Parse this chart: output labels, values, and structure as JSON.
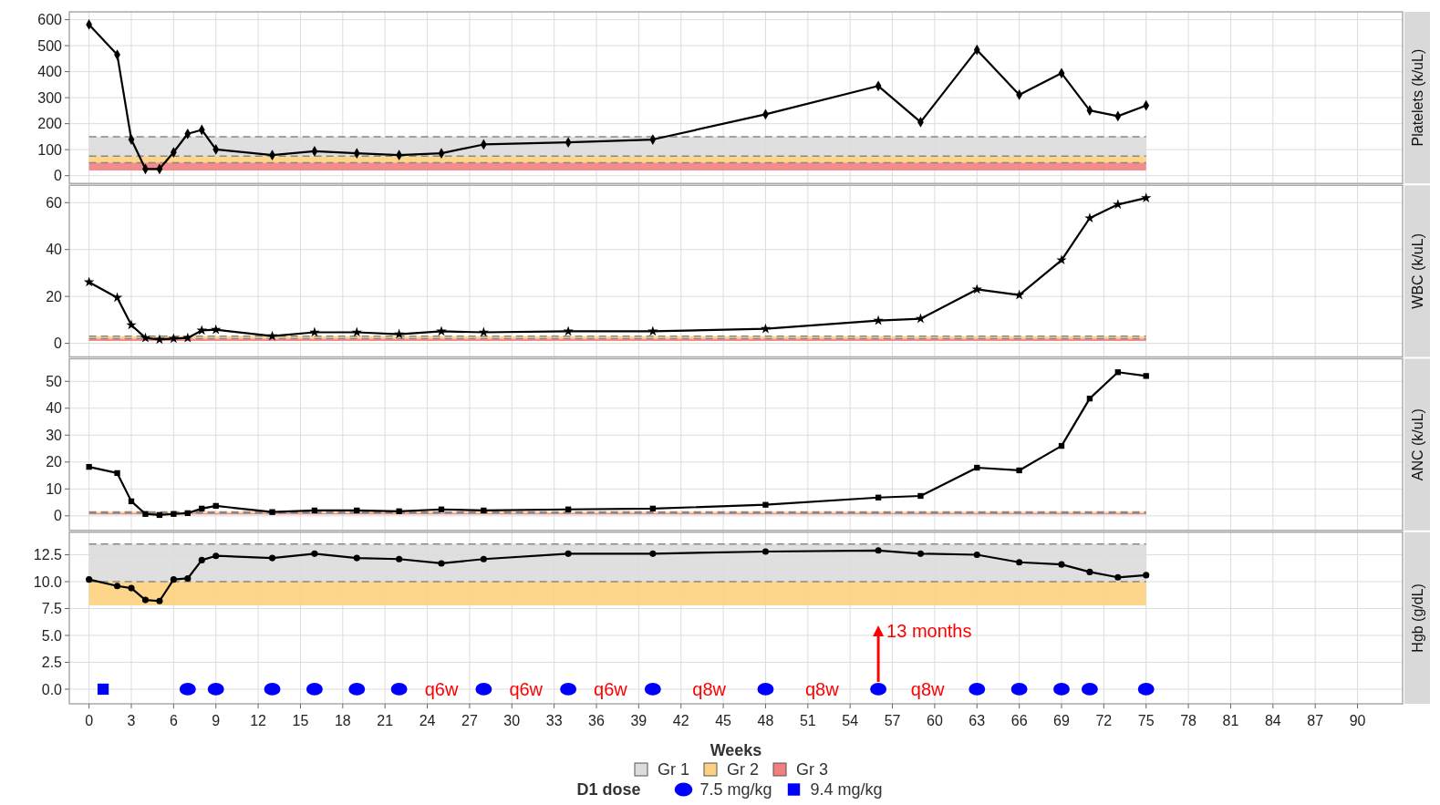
{
  "chart_data": [
    {
      "type": "line",
      "ylabel": "Platelets (k/uL)",
      "xlim": [
        -1.4,
        93.2
      ],
      "xticks": [
        0,
        3,
        6,
        9,
        12,
        15,
        18,
        21,
        24,
        27,
        30,
        33,
        36,
        39,
        42,
        45,
        48,
        51,
        54,
        57,
        60,
        63,
        66,
        69,
        72,
        75,
        78,
        81,
        84,
        87,
        90
      ],
      "ylim": [
        -30,
        630
      ],
      "yticks": [
        0,
        100,
        200,
        300,
        400,
        500,
        600
      ],
      "tick_labels": "y",
      "grid": true,
      "legend": "bottom",
      "x": [
        0,
        2,
        3,
        4,
        5,
        6,
        7,
        8,
        9,
        13,
        16,
        19,
        22,
        25,
        28,
        34,
        40,
        48,
        56,
        59,
        63,
        66,
        69,
        71,
        73,
        75
      ],
      "series": [
        {
          "color": "#000000",
          "marker": "diamond",
          "values": [
            581,
            465,
            139,
            26,
            26,
            90,
            161,
            176,
            101,
            79,
            94,
            86,
            79,
            86,
            120,
            128,
            139,
            236,
            345,
            206,
            484,
            311,
            394,
            251,
            229,
            270
          ]
        }
      ],
      "bands": [
        {
          "axis": "y",
          "from": 75,
          "to": 150,
          "label": "Gr 1",
          "color": "#dcdcdc"
        },
        {
          "axis": "y",
          "from": 50,
          "to": 75,
          "label": "Gr 2",
          "color": "#fdd17f"
        },
        {
          "axis": "y",
          "from": 20,
          "to": 50,
          "label": "Gr 3",
          "color": "#f47f7f"
        }
      ],
      "ref_lines": [
        {
          "axis": "y",
          "value": 150,
          "color": "#888888",
          "line_style": "dashed"
        },
        {
          "axis": "y",
          "value": 75,
          "color": "#888888",
          "line_style": "dashed"
        },
        {
          "axis": "y",
          "value": 50,
          "color": "#888888",
          "line_style": "dashed"
        }
      ]
    },
    {
      "type": "line",
      "ylabel": "WBC (k/uL)",
      "xlim": [
        -1.4,
        93.2
      ],
      "xticks": [
        0,
        3,
        6,
        9,
        12,
        15,
        18,
        21,
        24,
        27,
        30,
        33,
        36,
        39,
        42,
        45,
        48,
        51,
        54,
        57,
        60,
        63,
        66,
        69,
        72,
        75,
        78,
        81,
        84,
        87,
        90
      ],
      "ylim": [
        -5.8,
        67.4
      ],
      "yticks": [
        0,
        20,
        40,
        60
      ],
      "tick_labels": "y",
      "grid": true,
      "x": [
        0,
        2,
        3,
        4,
        5,
        6,
        7,
        8,
        9,
        13,
        16,
        19,
        22,
        25,
        28,
        34,
        40,
        48,
        56,
        59,
        63,
        66,
        69,
        71,
        73,
        75
      ],
      "series": [
        {
          "color": "#000000",
          "marker": "star",
          "values": [
            26.1,
            19.5,
            7.8,
            2.3,
            1.6,
            2,
            2.3,
            5.5,
            5.8,
            3.1,
            4.7,
            4.7,
            3.9,
            5.1,
            4.7,
            5.1,
            5.1,
            6.2,
            9.7,
            10.5,
            23,
            20.6,
            35.5,
            53.4,
            59.2,
            62
          ]
        }
      ],
      "bands": [
        {
          "axis": "y",
          "from": 2,
          "to": 3,
          "color": "#fdd17f"
        },
        {
          "axis": "y",
          "from": 1,
          "to": 2,
          "color": "#f47f7f"
        }
      ],
      "ref_lines": [
        {
          "axis": "y",
          "value": 3,
          "color": "#888888",
          "line_style": "dashed"
        },
        {
          "axis": "y",
          "value": 2,
          "color": "#888888",
          "line_style": "dashed"
        }
      ]
    },
    {
      "type": "line",
      "ylabel": "ANC (k/uL)",
      "xlim": [
        -1.4,
        93.2
      ],
      "xticks": [
        0,
        3,
        6,
        9,
        12,
        15,
        18,
        21,
        24,
        27,
        30,
        33,
        36,
        39,
        42,
        45,
        48,
        51,
        54,
        57,
        60,
        63,
        66,
        69,
        72,
        75,
        78,
        81,
        84,
        87,
        90
      ],
      "ylim": [
        -5.4,
        58.4
      ],
      "yticks": [
        0,
        10,
        20,
        30,
        40,
        50
      ],
      "tick_labels": "y",
      "grid": true,
      "x": [
        0,
        2,
        3,
        4,
        5,
        6,
        7,
        8,
        9,
        13,
        16,
        19,
        22,
        25,
        28,
        34,
        40,
        48,
        56,
        59,
        63,
        66,
        69,
        71,
        73,
        75
      ],
      "series": [
        {
          "color": "#000000",
          "marker": "square",
          "values": [
            18.2,
            15.9,
            5.4,
            0.7,
            0.3,
            0.7,
            1,
            2.7,
            3.7,
            1.4,
            2,
            2,
            1.7,
            2.4,
            2,
            2.4,
            2.7,
            4.1,
            6.8,
            7.4,
            17.9,
            16.9,
            26,
            43.6,
            53.4,
            52
          ]
        }
      ],
      "bands": [
        {
          "axis": "y",
          "from": 1,
          "to": 1.5,
          "color": "#fdd17f"
        },
        {
          "axis": "y",
          "from": 0.5,
          "to": 1,
          "color": "#f47f7f"
        }
      ],
      "ref_lines": [
        {
          "axis": "y",
          "value": 1.5,
          "color": "#888888",
          "line_style": "dashed"
        },
        {
          "axis": "y",
          "value": 1,
          "color": "#888888",
          "line_style": "dashed"
        }
      ]
    },
    {
      "type": "line",
      "ylabel": "Hgb (g/dL)",
      "xlabel": "Weeks",
      "xlim": [
        -1.4,
        93.2
      ],
      "xticks": [
        0,
        3,
        6,
        9,
        12,
        15,
        18,
        21,
        24,
        27,
        30,
        33,
        36,
        39,
        42,
        45,
        48,
        51,
        54,
        57,
        60,
        63,
        66,
        69,
        72,
        75,
        78,
        81,
        84,
        87,
        90
      ],
      "ylim": [
        -1.36,
        14.6
      ],
      "yticks": [
        {
          "value": 0,
          "label": "0.0"
        },
        {
          "value": 2.5,
          "label": "2.5"
        },
        {
          "value": 5,
          "label": "5.0"
        },
        {
          "value": 7.5,
          "label": "7.5"
        },
        {
          "value": 10,
          "label": "10.0"
        },
        {
          "value": 12.5,
          "label": "12.5"
        }
      ],
      "grid": true,
      "legend": "bottom",
      "legend_title": "D1 dose",
      "x": [
        0,
        2,
        3,
        4,
        5,
        6,
        7,
        8,
        9,
        13,
        16,
        19,
        22,
        25,
        28,
        34,
        40,
        48,
        56,
        59,
        63,
        66,
        69,
        71,
        73,
        75
      ],
      "series": [
        {
          "color": "#000000",
          "marker": "circle",
          "values": [
            10.2,
            9.6,
            9.4,
            8.3,
            8.2,
            10.2,
            10.3,
            12,
            12.4,
            12.2,
            12.6,
            12.2,
            12.1,
            11.7,
            12.1,
            12.6,
            12.6,
            12.8,
            12.9,
            12.6,
            12.5,
            11.8,
            11.6,
            10.9,
            10.4,
            10.6
          ]
        },
        {
          "type": "scatter",
          "name": "7.5 mg/kg",
          "color": "#0000ff",
          "marker": "circle",
          "x": [
            7,
            9,
            13,
            16,
            19,
            22,
            28,
            34,
            40,
            48,
            56,
            63,
            66,
            69,
            71,
            75
          ],
          "values": [
            0,
            0,
            0,
            0,
            0,
            0,
            0,
            0,
            0,
            0,
            0,
            0,
            0,
            0,
            0,
            0
          ]
        },
        {
          "type": "scatter",
          "name": "9.4 mg/kg",
          "color": "#0000ff",
          "marker": "square",
          "x": [
            1
          ],
          "values": [
            0
          ]
        }
      ],
      "bands": [
        {
          "axis": "y",
          "from": 10,
          "to": 13.5,
          "color": "#dcdcdc"
        },
        {
          "axis": "y",
          "from": 7.8,
          "to": 10,
          "color": "#fdd17f"
        }
      ],
      "ref_lines": [
        {
          "axis": "y",
          "value": 13.5,
          "color": "#888888",
          "line_style": "dashed"
        },
        {
          "axis": "y",
          "value": 10,
          "color": "#888888",
          "line_style": "dashed"
        }
      ],
      "annotations": [
        "q6w",
        "q6w",
        "q6w",
        "q8w",
        "q8w",
        "q8w",
        {
          "text": "13 months",
          "x": 56,
          "y": 0
        }
      ]
    }
  ]
}
